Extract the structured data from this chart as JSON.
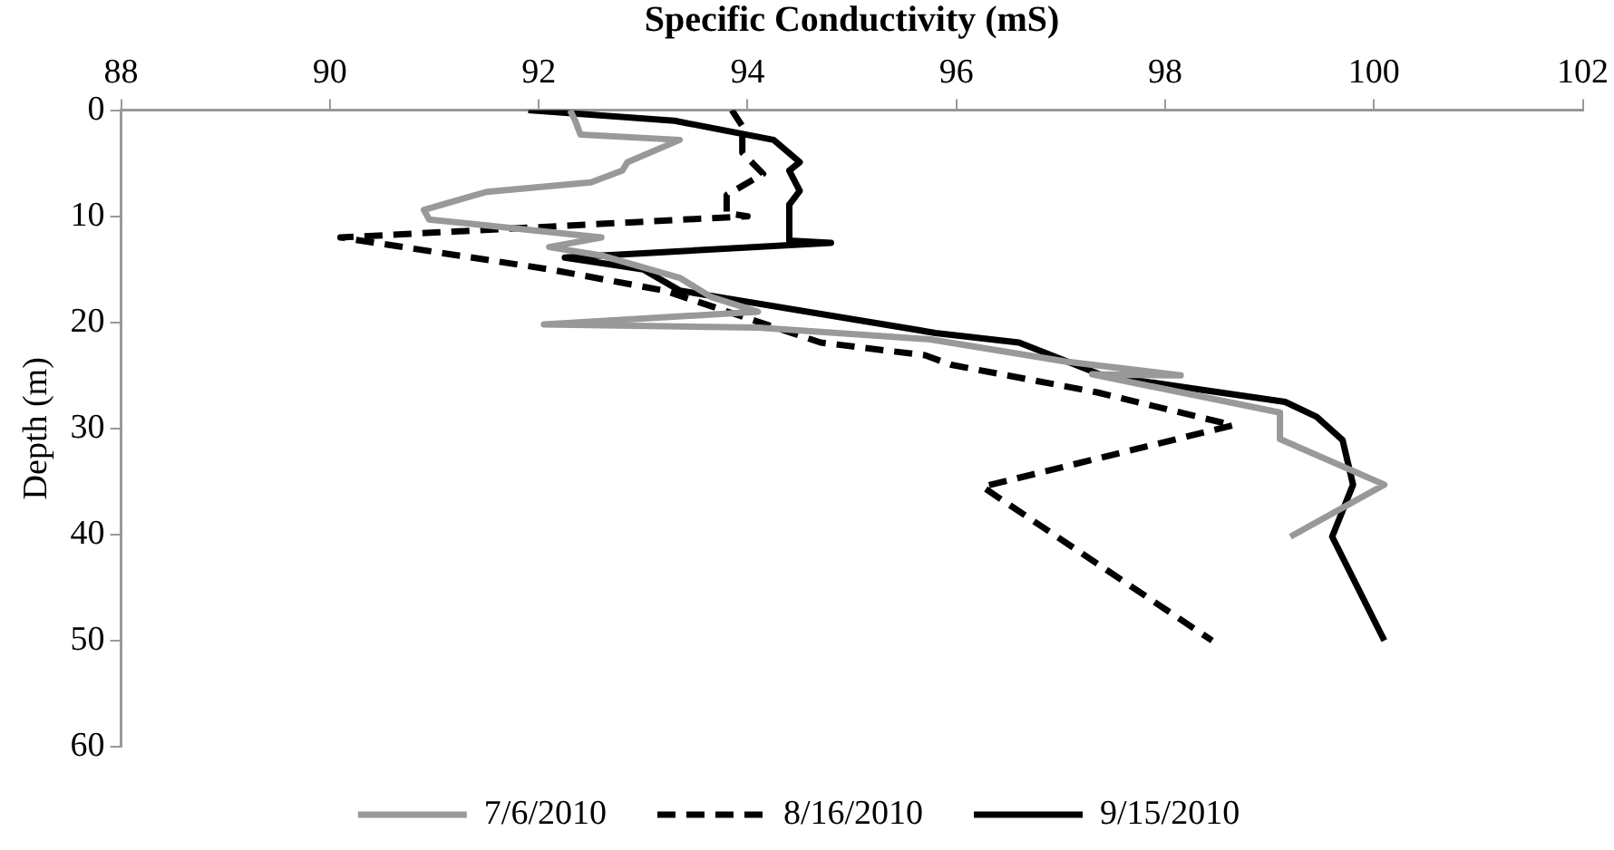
{
  "chart_data": {
    "type": "line",
    "xlabel": "Specific Conductivity (mS)",
    "ylabel": "Depth (m)",
    "xlim": [
      88,
      102
    ],
    "xticks": [
      88,
      90,
      92,
      94,
      96,
      98,
      100,
      102
    ],
    "ylim": [
      60,
      0
    ],
    "yticks": [
      0,
      10,
      20,
      30,
      40,
      50,
      60
    ],
    "grid": false,
    "legend": "bottom",
    "marker": "none",
    "series": [
      {
        "name": "7/6/2010",
        "color": "#999999",
        "line_style": "solid",
        "x": [
          92.3,
          92.35,
          92.4,
          93.35,
          92.85,
          92.8,
          92.5,
          91.5,
          90.9,
          90.95,
          92.6,
          92.1,
          92.6,
          93.35,
          93.65,
          94.1,
          92.05,
          94.1,
          95.75,
          97.05,
          98.15,
          97.3,
          99.1,
          99.1,
          100.1,
          99.2
        ],
        "values": [
          0,
          1,
          2.3,
          2.8,
          4.9,
          5.7,
          6.8,
          7.7,
          9.4,
          10.3,
          12,
          12.9,
          13.7,
          15.8,
          17.6,
          19,
          20.2,
          20.5,
          21.6,
          23.7,
          25,
          24.9,
          28.5,
          31,
          35.3,
          40.2
        ]
      },
      {
        "name": "8/16/2010",
        "color": "#000000",
        "line_style": "dashed",
        "x": [
          93.85,
          93.95,
          93.95,
          94.15,
          93.8,
          93.8,
          94,
          90.1,
          92.1,
          93.2,
          94.7,
          95.7,
          95.95,
          97.35,
          98.65,
          96.25,
          98.45
        ],
        "values": [
          0,
          1.5,
          4,
          6,
          8,
          9.7,
          10,
          12,
          15,
          17,
          21.9,
          23.1,
          24,
          26.6,
          29.7,
          35.5,
          50
        ]
      },
      {
        "name": "9/15/2010",
        "color": "#000000",
        "line_style": "solid",
        "x": [
          91.9,
          93.3,
          94.25,
          94.5,
          94.4,
          94.5,
          94.4,
          94.4,
          94.8,
          92.25,
          93,
          93.35,
          95.8,
          96.6,
          97.4,
          99.15,
          99.45,
          99.7,
          99.8,
          99.6,
          100.1
        ],
        "values": [
          0,
          1,
          2.8,
          4.9,
          5.7,
          7.6,
          8.9,
          12.3,
          12.5,
          13.9,
          15,
          17,
          21,
          21.9,
          25,
          27.5,
          28.9,
          31.1,
          35.3,
          40.2,
          50
        ]
      }
    ]
  }
}
